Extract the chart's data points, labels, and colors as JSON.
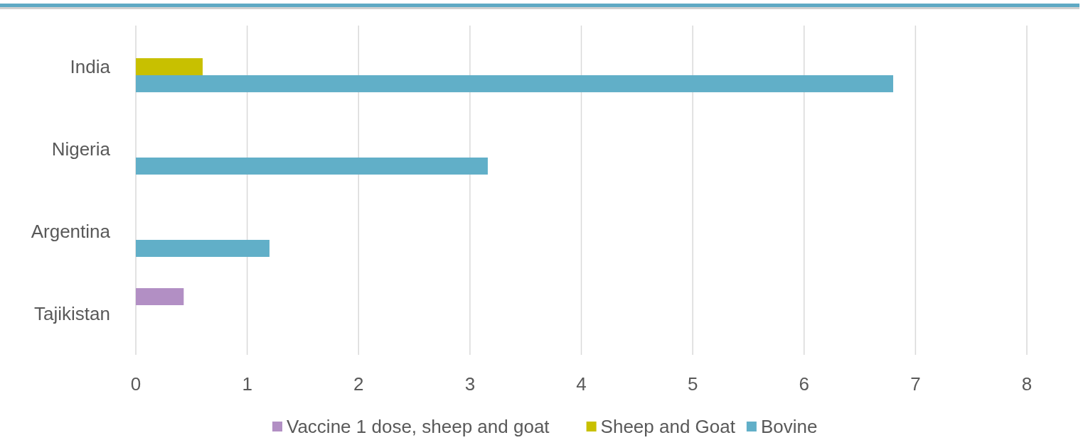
{
  "chart_data": {
    "type": "bar",
    "orientation": "horizontal",
    "categories": [
      "India",
      "Nigeria",
      "Argentina",
      "Tajikistan"
    ],
    "series": [
      {
        "name": "Vaccine 1 dose, sheep and goat",
        "color": "#b28fc4",
        "values": [
          null,
          null,
          null,
          0.43
        ]
      },
      {
        "name": "Sheep and Goat",
        "color": "#c8c000",
        "values": [
          0.6,
          null,
          null,
          null
        ]
      },
      {
        "name": "Bovine",
        "color": "#61afc8",
        "values": [
          6.8,
          3.16,
          1.2,
          null
        ]
      }
    ],
    "xlim": [
      0,
      8
    ],
    "xticks": [
      0,
      1,
      2,
      3,
      4,
      5,
      6,
      7,
      8
    ],
    "grid": "x",
    "legend": "bottom"
  }
}
